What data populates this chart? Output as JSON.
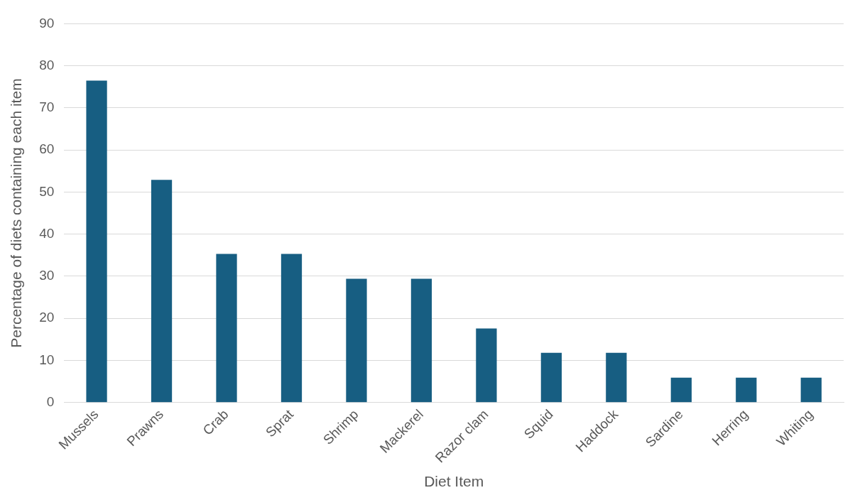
{
  "chart_data": {
    "type": "bar",
    "xlabel": "Diet Item",
    "ylabel": "Percentage of diets containing each item",
    "categories": [
      "Mussels",
      "Prawns",
      "Crab",
      "Sprat",
      "Shrimp",
      "Mackerel",
      "Razor clam",
      "Squid",
      "Haddock",
      "Sardine",
      "Herring",
      "Whiting"
    ],
    "values": [
      76.5,
      52.9,
      35.3,
      35.3,
      29.4,
      29.4,
      17.6,
      11.8,
      11.8,
      5.9,
      5.9,
      5.9
    ],
    "color": "#175e82",
    "ylim": [
      0,
      90
    ],
    "yticks": [
      0,
      10,
      20,
      30,
      40,
      50,
      60,
      70,
      80,
      90
    ],
    "grid": "y"
  }
}
